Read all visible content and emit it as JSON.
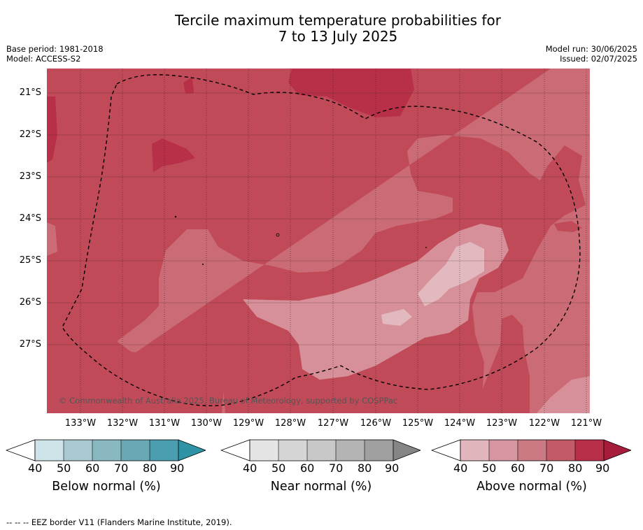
{
  "title_line1": "Tercile maximum temperature probabilities for",
  "title_line2": "7 to 13 July 2025",
  "base_period": "Base period: 1981-2018",
  "model": "Model: ACCESS-S2",
  "model_run": "Model run: 30/06/2025",
  "issued": "Issued: 02/07/2025",
  "lat_labels": [
    "21°S",
    "22°S",
    "23°S",
    "24°S",
    "25°S",
    "26°S",
    "27°S"
  ],
  "lon_labels": [
    "133°W",
    "132°W",
    "131°W",
    "130°W",
    "129°W",
    "128°W",
    "127°W",
    "126°W",
    "125°W",
    "124°W",
    "123°W",
    "122°W",
    "121°W"
  ],
  "copyright": "© Commonwealth of Australia 2025, Bureau of Meteorology, supported by COSPPac",
  "colorbars": {
    "below": {
      "title": "Below normal (%)",
      "ticks": [
        "40",
        "50",
        "60",
        "70",
        "80",
        "90"
      ]
    },
    "near": {
      "title": "Near normal (%)",
      "ticks": [
        "40",
        "50",
        "60",
        "70",
        "80",
        "90"
      ]
    },
    "above": {
      "title": "Above normal (%)",
      "ticks": [
        "40",
        "50",
        "60",
        "70",
        "80",
        "90"
      ]
    }
  },
  "colors": {
    "below": [
      "#ffffff",
      "#cde3e8",
      "#a8c9cf",
      "#8ab8c2",
      "#6aa8b5",
      "#4a9eaf",
      "#2f93a6"
    ],
    "near": [
      "#ffffff",
      "#e5e5e5",
      "#d6d6d6",
      "#c8c8c8",
      "#b4b4b4",
      "#a0a0a0",
      "#858585"
    ],
    "above": [
      "#ffffff",
      "#e1b6bc",
      "#d6969f",
      "#cb7a84",
      "#c25a68",
      "#b72f48",
      "#a51d3a"
    ]
  },
  "footer": "--  --  -- EEZ border V11 (Flanders Marine Institute, 2019)."
}
